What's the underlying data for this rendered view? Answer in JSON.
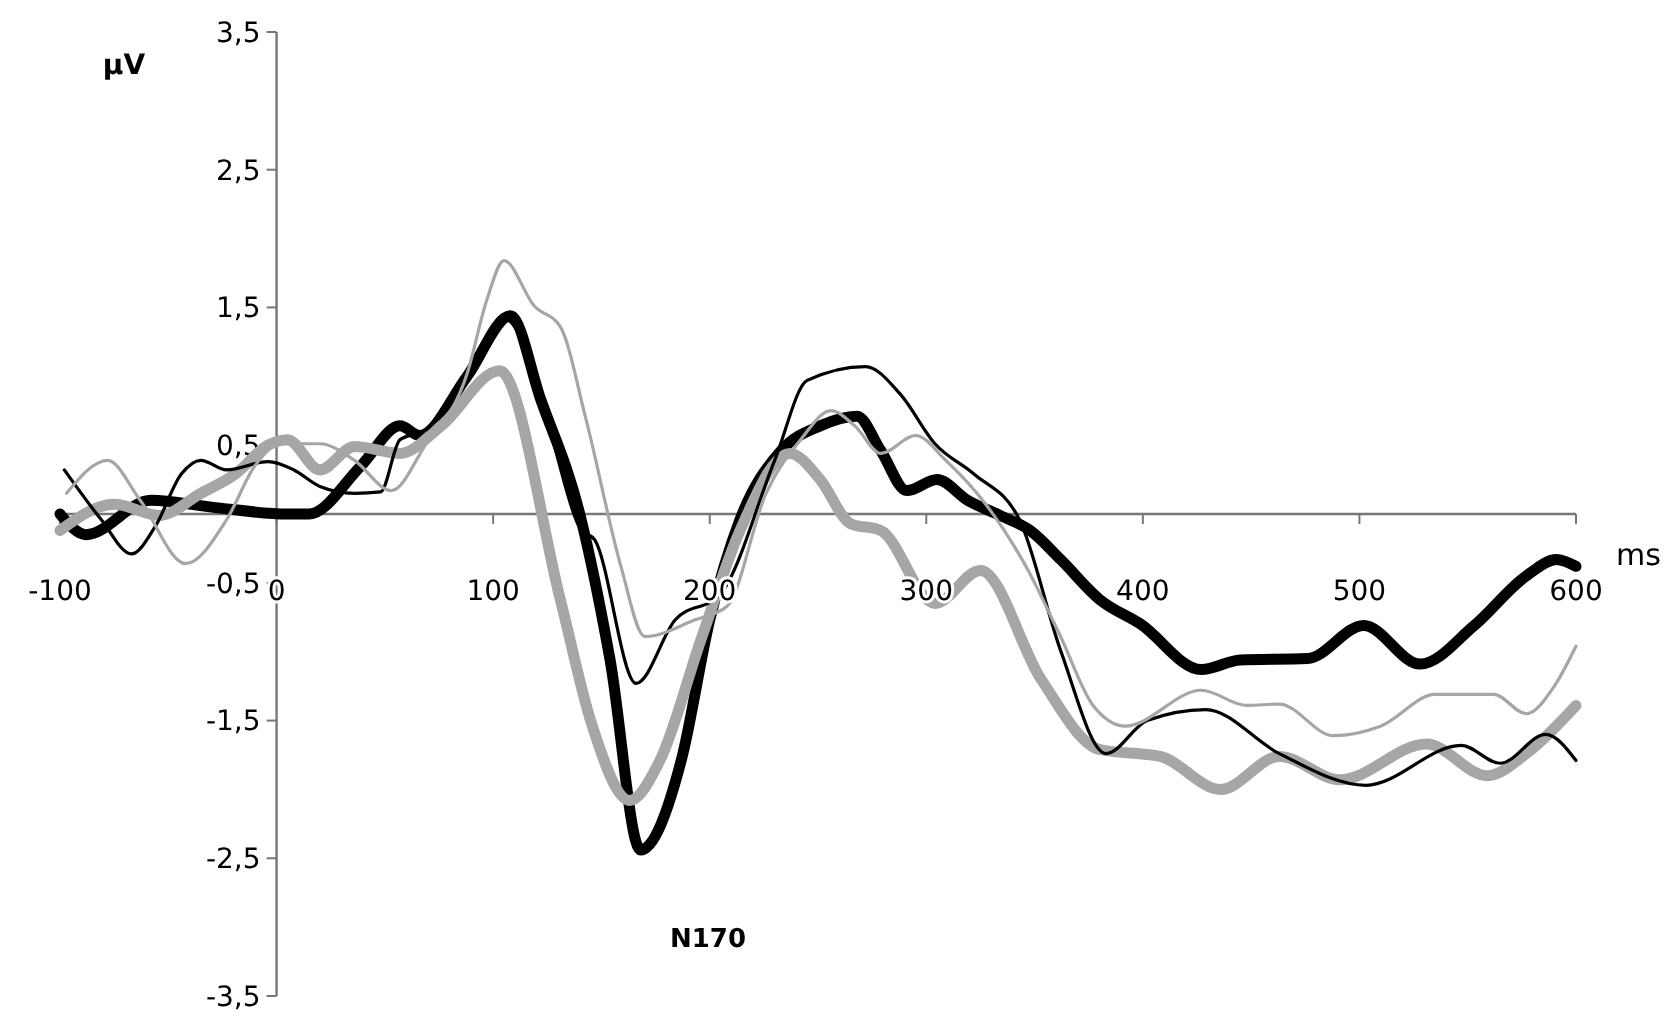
{
  "chart_data": {
    "type": "line",
    "xlabel": "ms",
    "ylabel": "µV",
    "xlim": [
      -100,
      600
    ],
    "ylim": [
      -3.5,
      3.5
    ],
    "xticks": [
      -100,
      0,
      100,
      200,
      300,
      400,
      500,
      600
    ],
    "yticks": [
      {
        "value": -3.5,
        "label": "-3,5"
      },
      {
        "value": -2.5,
        "label": "-2,5"
      },
      {
        "value": -1.5,
        "label": "-1,5"
      },
      {
        "value": -0.5,
        "label": "-0,5"
      },
      {
        "value": 0.5,
        "label": "0,5"
      },
      {
        "value": 1.5,
        "label": "1,5"
      },
      {
        "value": 2.5,
        "label": "2,5"
      },
      {
        "value": 3.5,
        "label": "3,5"
      }
    ],
    "grid": false,
    "marker": "none",
    "line_style": "solid",
    "annotations": [
      "N170"
    ],
    "series": [
      {
        "color": "#000000",
        "x": [
          -100,
          -88,
          -58,
          -30,
          5,
          15,
          39,
          57,
          66,
          88,
          108,
          122,
          140,
          154,
          168,
          187,
          200,
          214,
          233,
          251,
          268,
          279,
          291,
          305,
          319,
          334,
          348,
          362,
          380,
          399,
          427,
          445,
          476,
          502,
          528,
          553,
          577,
          591,
          600
        ],
        "values": [
          0,
          -0.15,
          0.1,
          0.05,
          0,
          0,
          0.35,
          0.64,
          0.57,
          1.0,
          1.44,
          0.83,
          0,
          -1.06,
          -2.44,
          -1.78,
          -0.77,
          -0.04,
          0.46,
          0.64,
          0.71,
          0.46,
          0.17,
          0.25,
          0.1,
          -0.01,
          -0.12,
          -0.33,
          -0.62,
          -0.8,
          -1.13,
          -1.06,
          -1.05,
          -0.81,
          -1.09,
          -0.81,
          -0.45,
          -0.33,
          -0.38
        ]
      },
      {
        "color": "#a6a6a6",
        "x": [
          -100,
          -75,
          -54,
          -35,
          -19,
          -4,
          5,
          20,
          36,
          57,
          76,
          103,
          131,
          145,
          163,
          177,
          196,
          214,
          237,
          251,
          265,
          279,
          304,
          325,
          353,
          380,
          408,
          436,
          463,
          491,
          531,
          559,
          577,
          600
        ],
        "values": [
          -0.12,
          0.07,
          -0.01,
          0.15,
          0.29,
          0.5,
          0.54,
          0.32,
          0.49,
          0.44,
          0.64,
          1.04,
          -0.62,
          -1.5,
          -2.08,
          -1.79,
          -0.91,
          -0.12,
          0.44,
          0.25,
          -0.07,
          -0.12,
          -0.65,
          -0.41,
          -1.2,
          -1.71,
          -1.76,
          -2.0,
          -1.76,
          -1.93,
          -1.67,
          -1.9,
          -1.74,
          -1.39
        ]
      },
      {
        "color": "#000000",
        "x": [
          -98,
          -81,
          -67,
          -56,
          -44,
          -35,
          -23,
          -4,
          8,
          20,
          36,
          48,
          57,
          69,
          88,
          106,
          126,
          140,
          147,
          166,
          184,
          205,
          230,
          245,
          272,
          288,
          304,
          322,
          343,
          362,
          383,
          402,
          429,
          463,
          503,
          547,
          565,
          586,
          600
        ],
        "values": [
          0.32,
          -0.04,
          -0.29,
          -0.09,
          0.29,
          0.39,
          0.32,
          0.38,
          0.32,
          0.2,
          0.15,
          0.16,
          0.54,
          0.61,
          1.02,
          1.41,
          0.61,
          -0.1,
          -0.19,
          -1.23,
          -0.77,
          -0.58,
          0.39,
          0.97,
          1.07,
          0.87,
          0.51,
          0.29,
          -0.04,
          -0.99,
          -1.74,
          -1.5,
          -1.42,
          -1.74,
          -1.97,
          -1.68,
          -1.81,
          -1.6,
          -1.79
        ]
      },
      {
        "color": "#a6a6a6",
        "x": [
          -97,
          -78,
          -63,
          -42,
          -23,
          -10,
          2,
          20,
          36,
          53,
          69,
          88,
          97,
          105,
          119,
          131,
          143,
          159,
          170,
          193,
          208,
          226,
          242,
          256,
          267,
          279,
          295,
          309,
          328,
          346,
          362,
          377,
          392,
          427,
          448,
          463,
          488,
          510,
          535,
          562,
          577,
          590,
          600
        ],
        "values": [
          0.15,
          0.39,
          0.1,
          -0.36,
          -0.04,
          0.35,
          0.51,
          0.51,
          0.39,
          0.17,
          0.51,
          1.02,
          1.55,
          1.84,
          1.51,
          1.36,
          0.68,
          -0.38,
          -0.89,
          -0.77,
          -0.67,
          0.15,
          0.54,
          0.75,
          0.64,
          0.44,
          0.57,
          0.39,
          0.06,
          -0.38,
          -0.89,
          -1.39,
          -1.54,
          -1.28,
          -1.39,
          -1.38,
          -1.61,
          -1.54,
          -1.31,
          -1.31,
          -1.45,
          -1.25,
          -0.96
        ]
      }
    ]
  }
}
